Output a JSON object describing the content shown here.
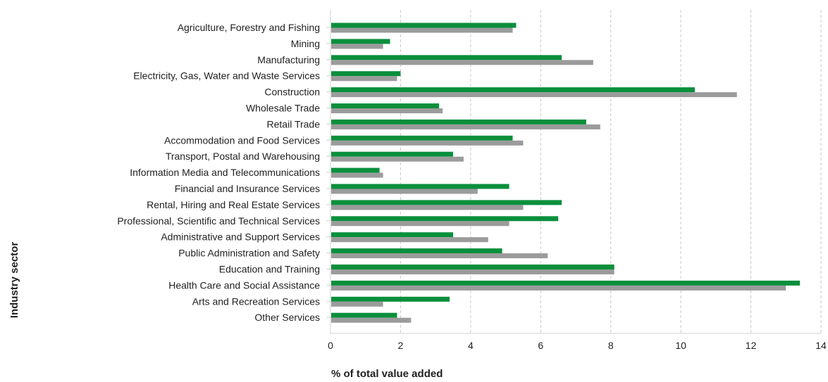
{
  "chart_data": {
    "type": "bar",
    "orientation": "horizontal",
    "categories": [
      "Agriculture, Forestry and Fishing",
      "Mining",
      "Manufacturing",
      "Electricity, Gas, Water and Waste Services",
      "Construction",
      "Wholesale Trade",
      "Retail Trade",
      "Accommodation and Food Services",
      "Transport, Postal and Warehousing",
      "Information Media and Telecommunications",
      "Financial and Insurance Services",
      "Rental, Hiring and Real Estate Services",
      "Professional, Scientific and Technical Services",
      "Administrative and Support Services",
      "Public Administration and Safety",
      "Education and Training",
      "Health Care and Social Assistance",
      "Arts and Recreation Services",
      "Other Services"
    ],
    "series": [
      {
        "color": "#0a8f3c",
        "values": [
          5.3,
          1.7,
          6.6,
          2.0,
          10.4,
          3.1,
          7.3,
          5.2,
          3.5,
          1.4,
          5.1,
          6.6,
          6.5,
          3.5,
          4.9,
          8.1,
          13.4,
          3.4,
          1.9
        ]
      },
      {
        "color": "#9b9b9b",
        "values": [
          5.2,
          1.5,
          7.5,
          1.9,
          11.6,
          3.2,
          7.7,
          5.5,
          3.8,
          1.5,
          4.2,
          5.5,
          5.1,
          4.5,
          6.2,
          8.1,
          13.0,
          1.5,
          2.3
        ]
      }
    ],
    "xlim": [
      0,
      14
    ],
    "xticks": [
      0,
      2,
      4,
      6,
      8,
      10,
      12,
      14
    ],
    "xlabel": "% of total value added",
    "ylabel": "Industry sector",
    "grid": "vertical-dashed"
  }
}
